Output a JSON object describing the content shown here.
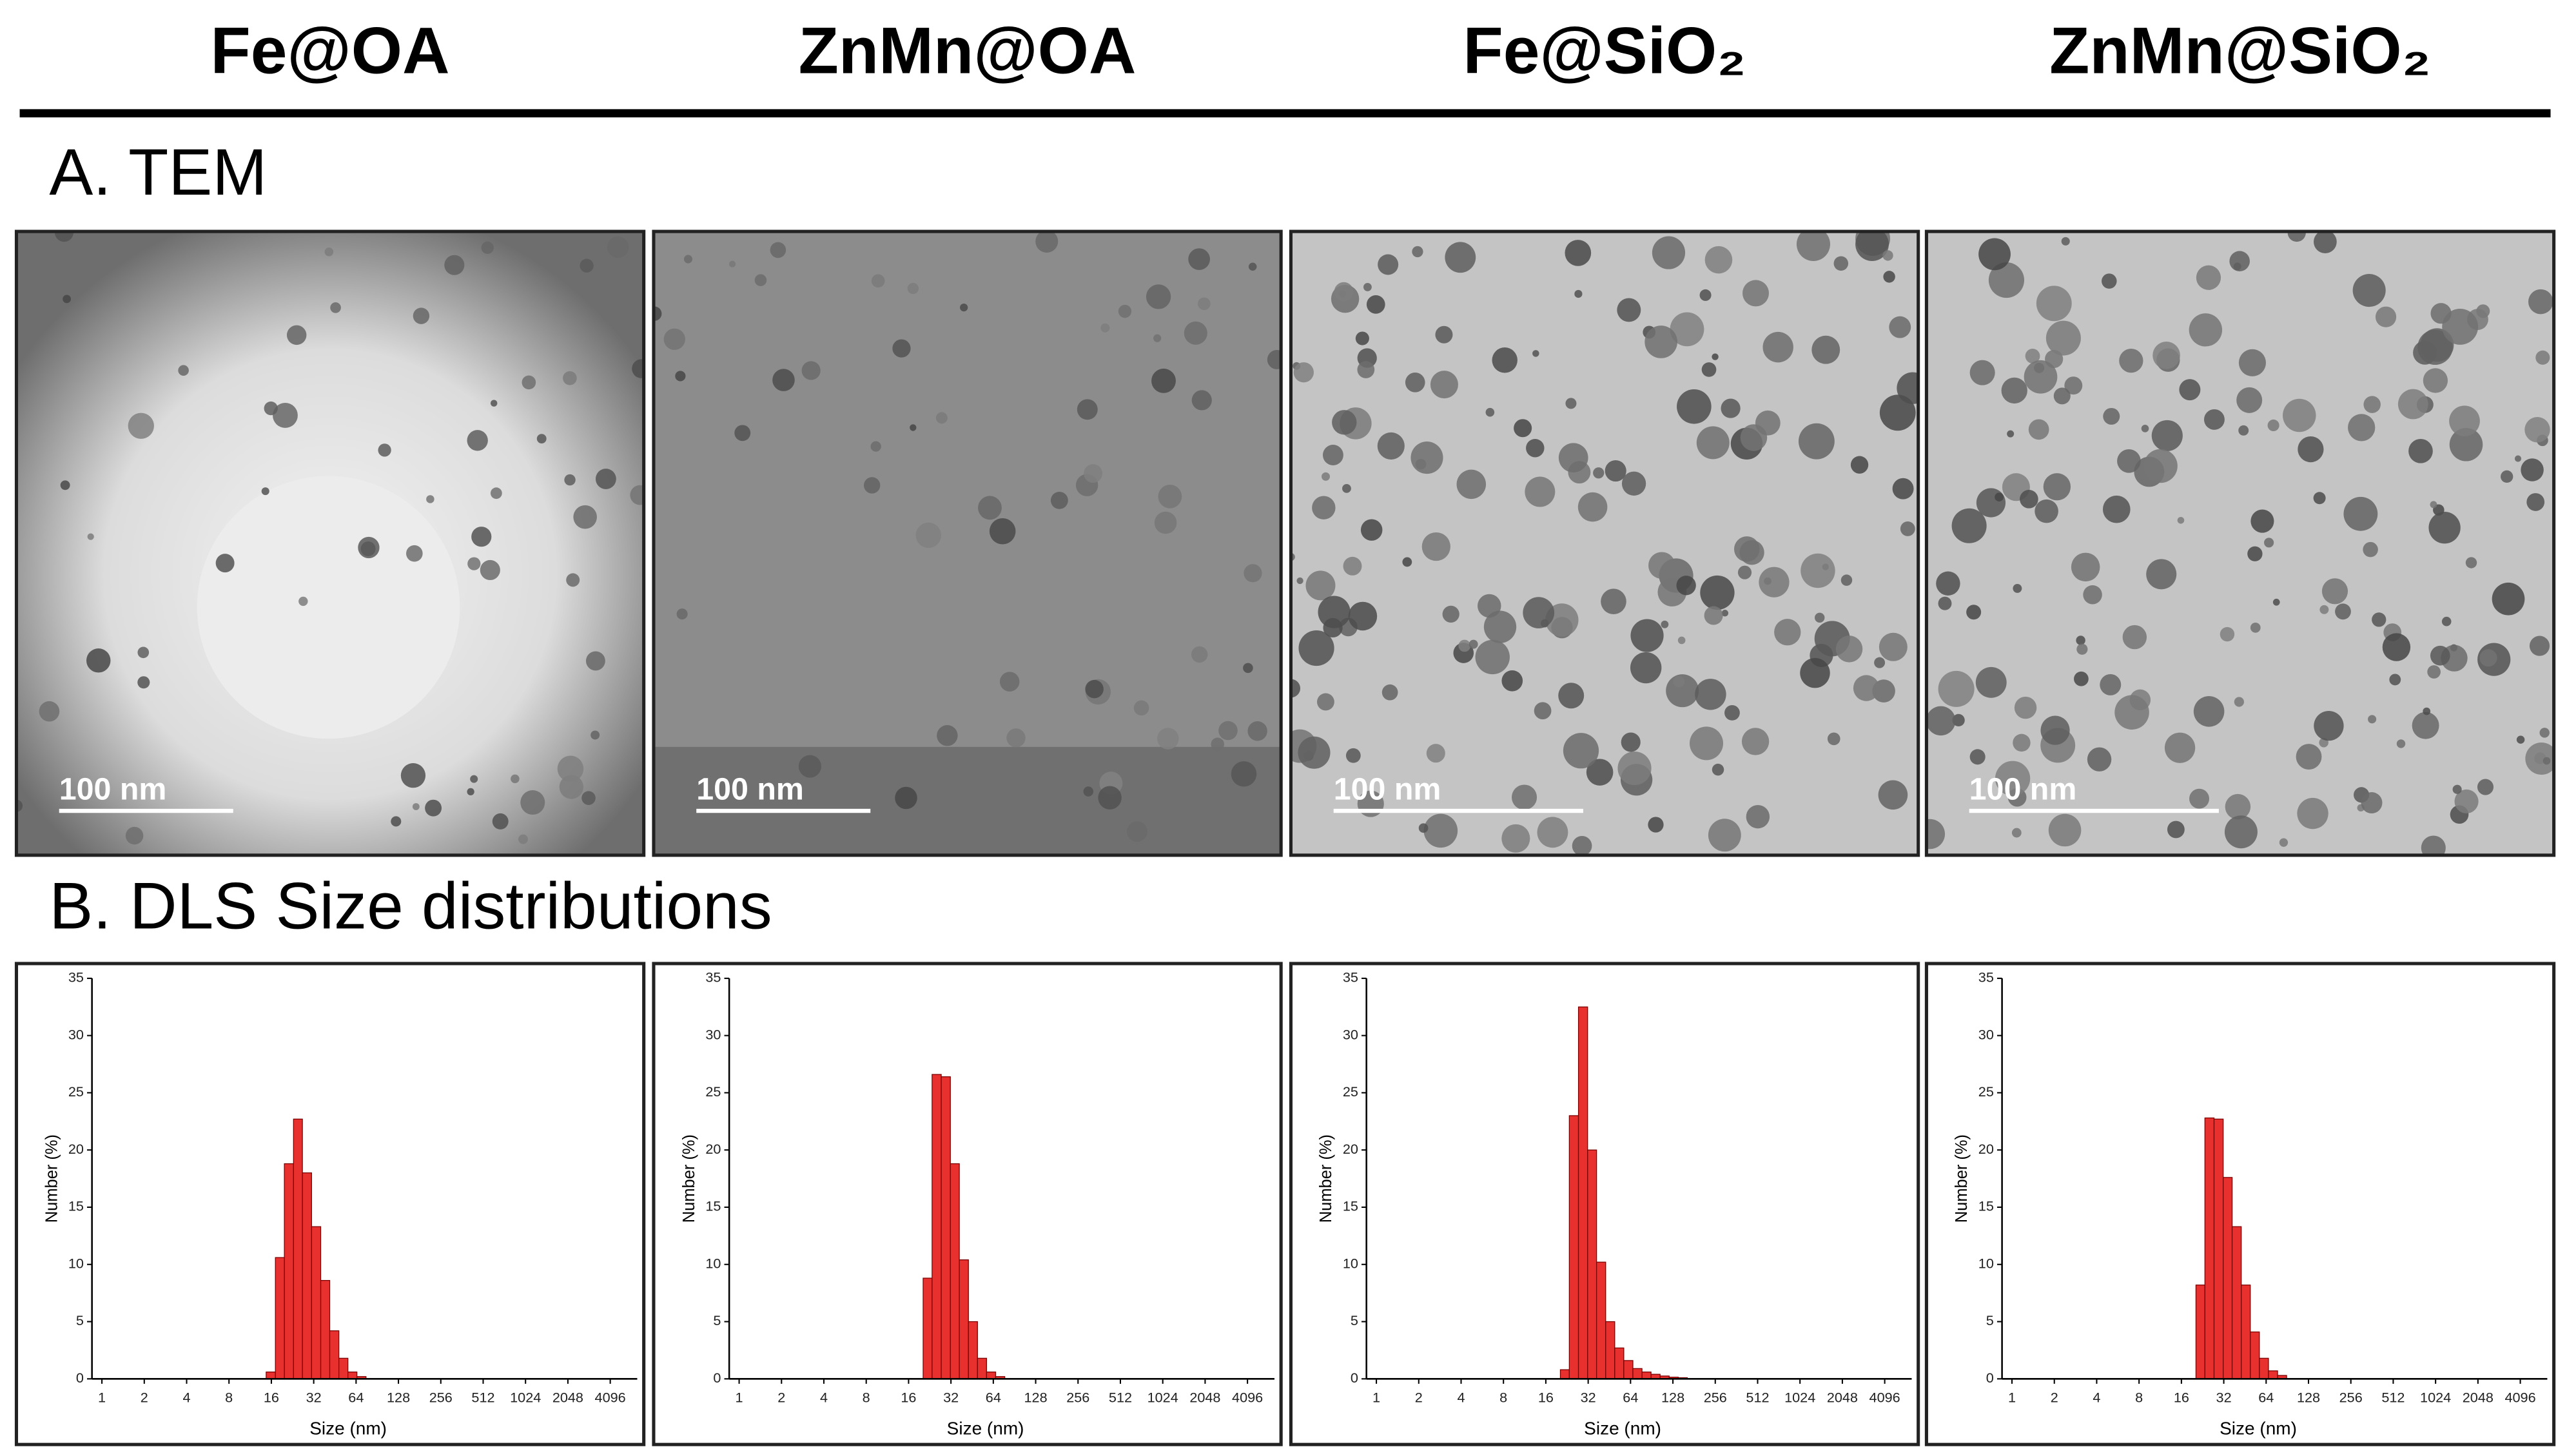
{
  "columns": [
    "Fe@OA",
    "ZnMn@OA",
    "Fe@SiO₂",
    "ZnMn@SiO₂"
  ],
  "sections": {
    "tem": "A. TEM",
    "dls": "B. DLS Size distributions"
  },
  "scale_bars": [
    "100 nm",
    "100 nm",
    "100 nm",
    "100 nm"
  ],
  "chart_data": [
    {
      "type": "histogram",
      "color": "#e8312f",
      "xscale": "log",
      "xlabel": "Size (nm)",
      "ylabel": "Number (%)",
      "bins": [
        14.7,
        17.1,
        19.8,
        23.0,
        26.6,
        30.9,
        35.9,
        41.6,
        48.3,
        56.0,
        64.9,
        75.3
      ],
      "values": [
        0.6,
        10.6,
        18.8,
        22.7,
        18.0,
        13.3,
        8.6,
        4.2,
        1.8,
        0.6,
        0.2
      ],
      "xlim": [
        0.85,
        6370
      ],
      "xticks": [
        1,
        2,
        4,
        8,
        16,
        32,
        64,
        128,
        256,
        512,
        1024,
        2048,
        4096
      ],
      "ylim": [
        0,
        35
      ],
      "yticks": [
        0,
        5,
        10,
        15,
        20,
        25,
        30,
        35
      ]
    },
    {
      "type": "histogram",
      "color": "#e8312f",
      "xscale": "log",
      "xlabel": "Size (nm)",
      "ylabel": "Number (%)",
      "bins": [
        20.3,
        23.5,
        27.3,
        31.7,
        36.7,
        42.6,
        49.4,
        57.3,
        66.5,
        77.2
      ],
      "values": [
        8.8,
        26.6,
        26.4,
        18.8,
        10.4,
        5.0,
        1.8,
        0.6,
        0.2
      ],
      "xlim": [
        0.85,
        6370
      ],
      "xticks": [
        1,
        2,
        4,
        8,
        16,
        32,
        64,
        128,
        256,
        512,
        1024,
        2048,
        4096
      ],
      "ylim": [
        0,
        35
      ],
      "yticks": [
        0,
        5,
        10,
        15,
        20,
        25,
        30,
        35
      ]
    },
    {
      "type": "histogram",
      "color": "#e8312f",
      "xscale": "log",
      "xlabel": "Size (nm)",
      "ylabel": "Number (%)",
      "bins": [
        20.3,
        23.5,
        27.3,
        31.7,
        36.7,
        42.6,
        49.4,
        57.3,
        66.5,
        77.2,
        89.5,
        103.8,
        120.4,
        139.7,
        162.1
      ],
      "values": [
        0.8,
        23.0,
        32.5,
        20.0,
        10.2,
        5.0,
        2.7,
        1.6,
        0.9,
        0.6,
        0.4,
        0.25,
        0.15,
        0.1
      ],
      "xlim": [
        0.85,
        6370
      ],
      "xticks": [
        1,
        2,
        4,
        8,
        16,
        32,
        64,
        128,
        256,
        512,
        1024,
        2048,
        4096
      ],
      "ylim": [
        0,
        35
      ],
      "yticks": [
        0,
        5,
        10,
        15,
        20,
        25,
        30,
        35
      ]
    },
    {
      "type": "histogram",
      "color": "#e8312f",
      "xscale": "log",
      "xlabel": "Size (nm)",
      "ylabel": "Number (%)",
      "bins": [
        20.3,
        23.5,
        27.3,
        31.7,
        36.7,
        42.6,
        49.4,
        57.3,
        66.5,
        77.2,
        89.5
      ],
      "values": [
        8.2,
        22.8,
        22.7,
        17.6,
        13.3,
        8.2,
        4.1,
        1.8,
        0.7,
        0.3
      ],
      "xlim": [
        0.85,
        6370
      ],
      "xticks": [
        1,
        2,
        4,
        8,
        16,
        32,
        64,
        128,
        256,
        512,
        1024,
        2048,
        4096
      ],
      "ylim": [
        0,
        35
      ],
      "yticks": [
        0,
        5,
        10,
        15,
        20,
        25,
        30,
        35
      ]
    }
  ]
}
